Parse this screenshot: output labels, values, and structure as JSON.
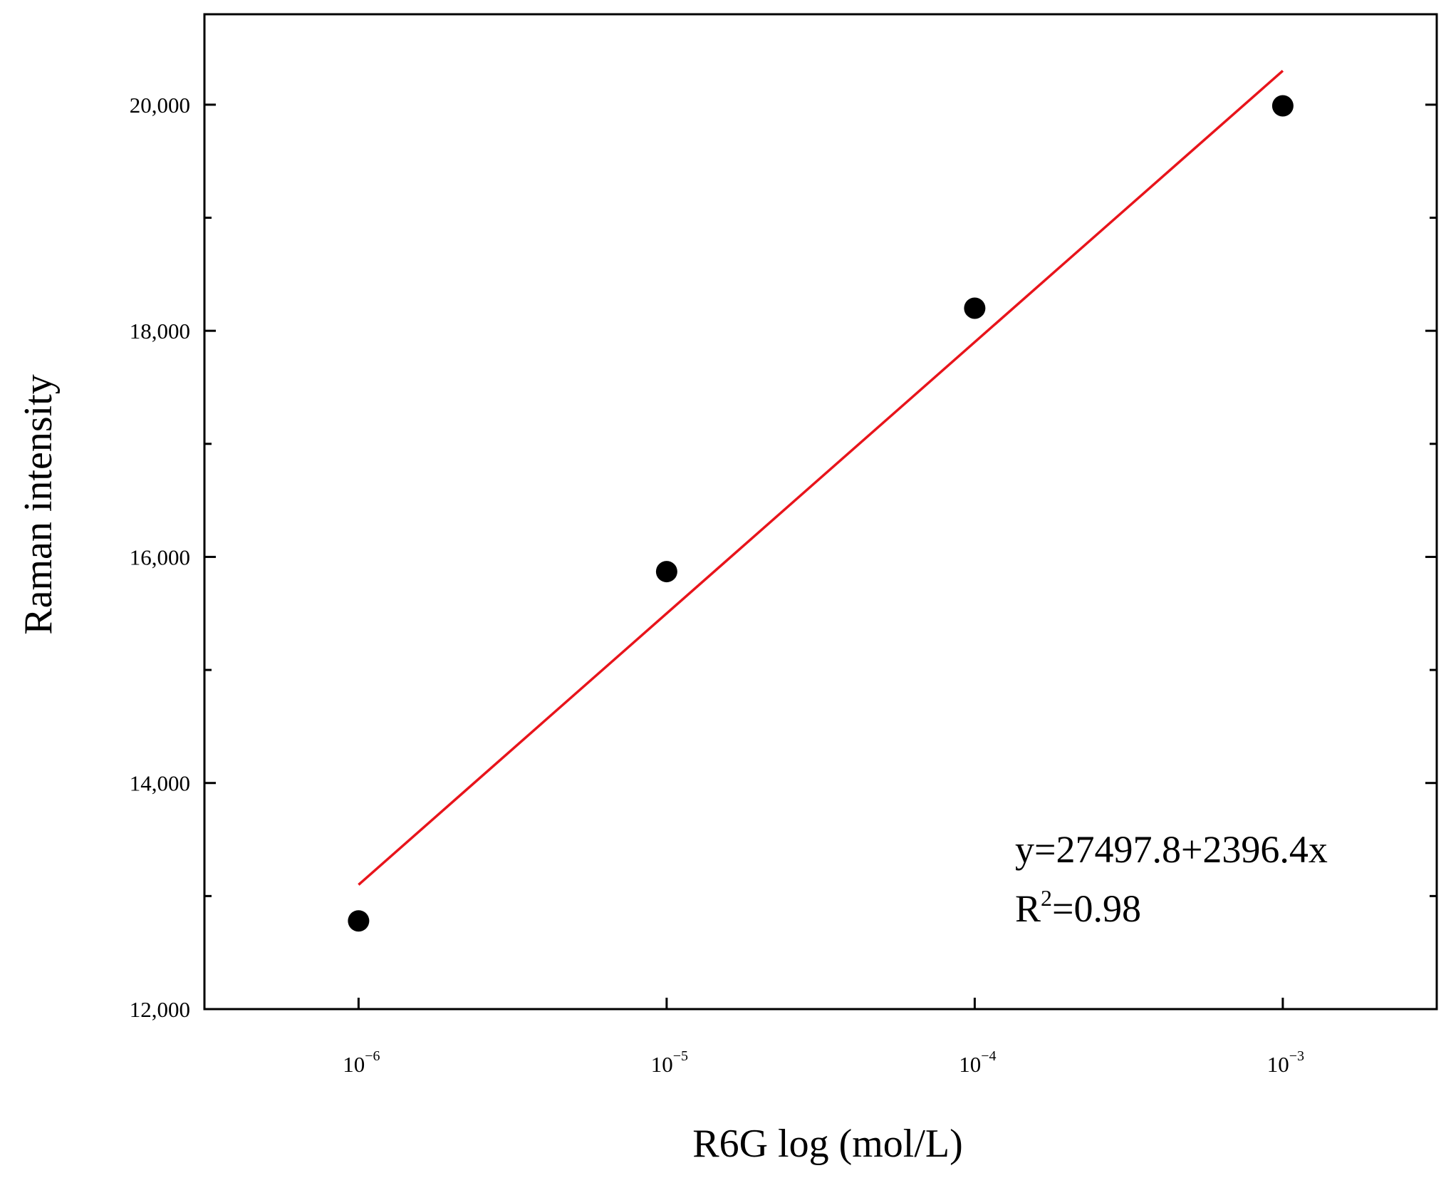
{
  "chart_data": {
    "type": "scatter",
    "xlabel": "R6G log (mol/L)",
    "ylabel": "Raman intensity",
    "xscale": "log",
    "xlim": [
      3.16e-07,
      0.00316
    ],
    "ylim": [
      12000,
      20800
    ],
    "xticks": [
      {
        "value": 1e-06,
        "base": "10",
        "exp": "−6"
      },
      {
        "value": 1e-05,
        "base": "10",
        "exp": "−5"
      },
      {
        "value": 0.0001,
        "base": "10",
        "exp": "−4"
      },
      {
        "value": 0.001,
        "base": "10",
        "exp": "−3"
      }
    ],
    "yticks_major": [
      {
        "value": 12000,
        "label": "12,000"
      },
      {
        "value": 14000,
        "label": "14,000"
      },
      {
        "value": 16000,
        "label": "16,000"
      },
      {
        "value": 18000,
        "label": "18,000"
      },
      {
        "value": 20000,
        "label": "20,000"
      }
    ],
    "yticks_minor": [
      13000,
      15000,
      17000,
      19000
    ],
    "series": [
      {
        "marker": "circle",
        "color": "#000000",
        "points": [
          {
            "x": 1e-06,
            "y": 12780
          },
          {
            "x": 1e-05,
            "y": 15870
          },
          {
            "x": 0.0001,
            "y": 18200
          },
          {
            "x": 0.001,
            "y": 19990
          }
        ]
      }
    ],
    "fit_line": {
      "color": "#e8141b",
      "x_range": [
        1e-06,
        0.001
      ],
      "y_range": [
        13100,
        20300
      ]
    },
    "annotation": {
      "equation": "y=27497.8+2396.4x",
      "r2_base": "R",
      "r2_sup": "2",
      "r2_value": "=0.98"
    },
    "grid": false
  }
}
